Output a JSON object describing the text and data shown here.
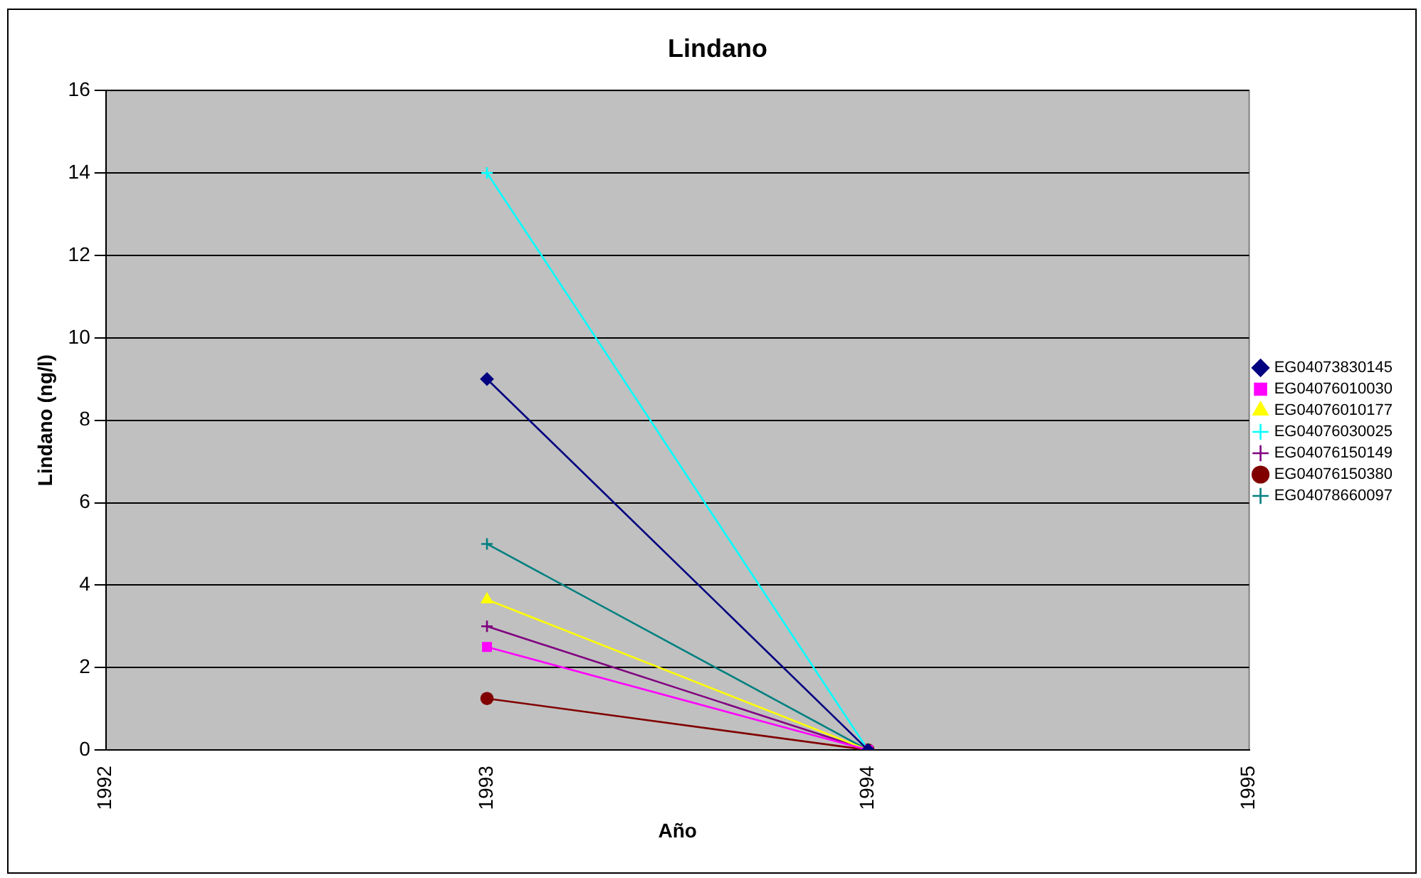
{
  "chart_data": {
    "type": "line",
    "title": "Lindano",
    "xlabel": "Año",
    "ylabel": "Lindano (ng/l)",
    "x": [
      1993,
      1994
    ],
    "xlim": [
      1992,
      1995
    ],
    "xticks": [
      1992,
      1993,
      1994,
      1995
    ],
    "ylim": [
      0,
      16
    ],
    "yticks": [
      0,
      2,
      4,
      6,
      8,
      10,
      12,
      14,
      16
    ],
    "grid": "y",
    "legend": "right",
    "series": [
      {
        "name": "EG04073830145",
        "color": "#000080",
        "marker": "diamond",
        "values": [
          9,
          0
        ]
      },
      {
        "name": "EG04076010030",
        "color": "#ff00ff",
        "marker": "square",
        "values": [
          2.5,
          0
        ]
      },
      {
        "name": "EG04076010177",
        "color": "#ffff00",
        "marker": "triangle",
        "values": [
          3.65,
          0
        ]
      },
      {
        "name": "EG04076030025",
        "color": "#00ffff",
        "marker": "cross",
        "values": [
          14,
          0
        ]
      },
      {
        "name": "EG04076150149",
        "color": "#800080",
        "marker": "cross",
        "values": [
          3,
          0
        ]
      },
      {
        "name": "EG04076150380",
        "color": "#800000",
        "marker": "circle",
        "values": [
          1.25,
          0
        ]
      },
      {
        "name": "EG04078660097",
        "color": "#008080",
        "marker": "cross",
        "values": [
          5,
          0
        ]
      }
    ]
  }
}
